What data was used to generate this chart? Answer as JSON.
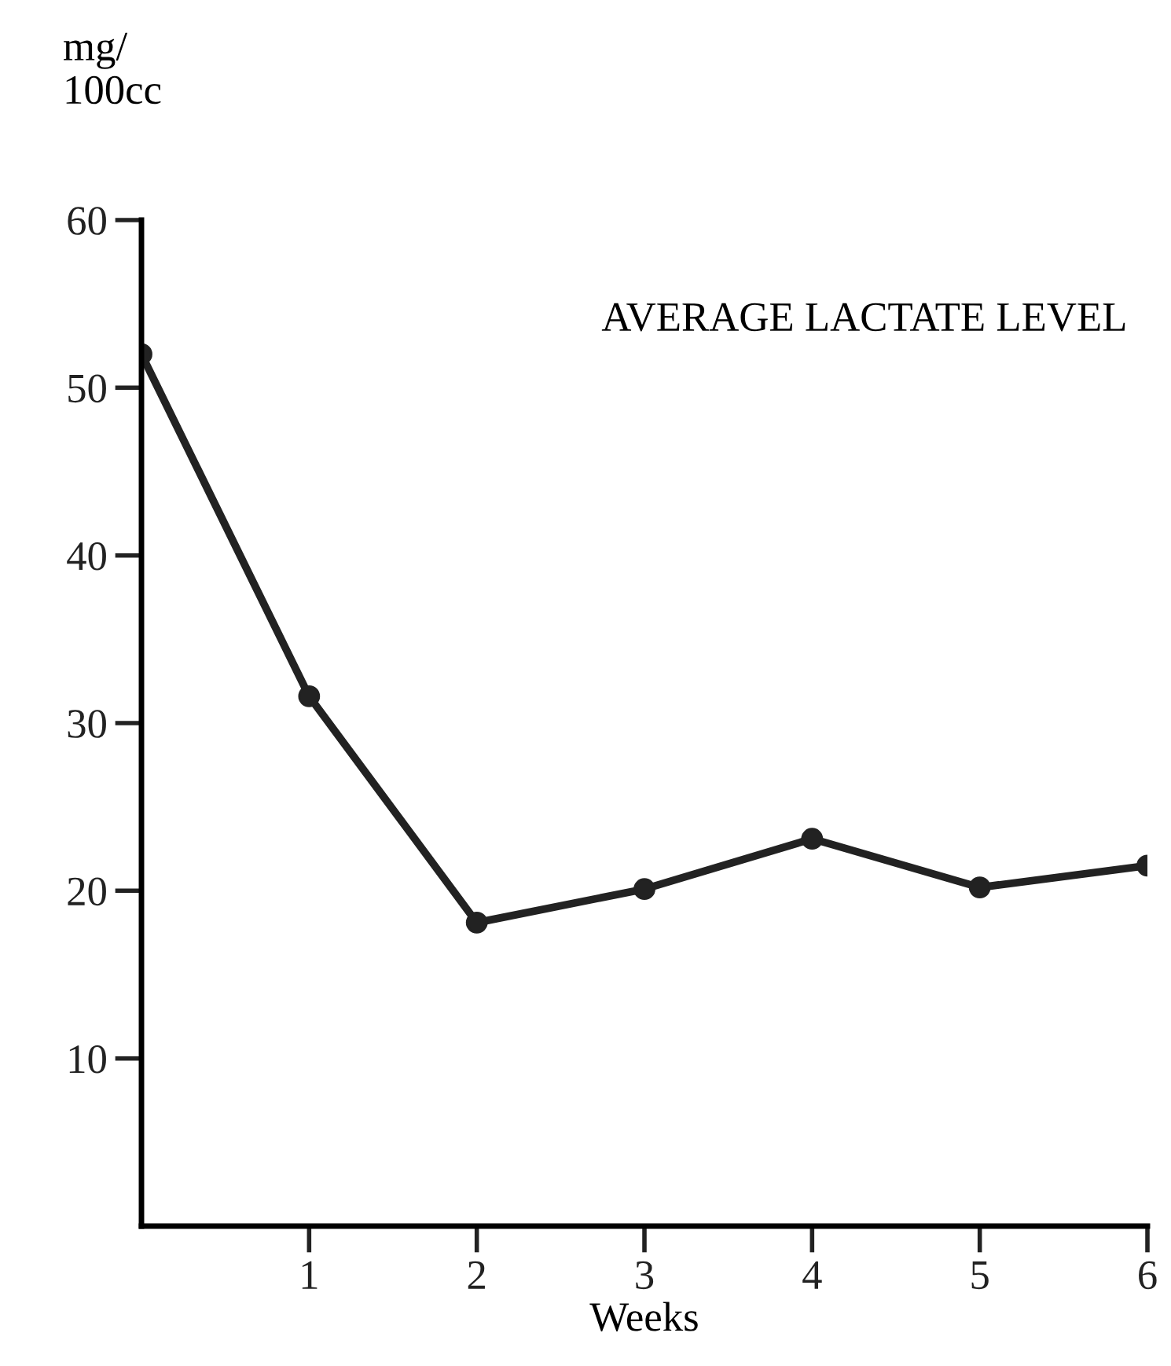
{
  "chart_data": {
    "type": "line",
    "title": "AVERAGE LACTATE LEVEL",
    "xlabel": "Weeks",
    "ylabel": "mg/\n100cc",
    "x": [
      0,
      1,
      2,
      3,
      4,
      5,
      6
    ],
    "series": [
      {
        "color": "#222222",
        "values": [
          52.0,
          31.6,
          18.1,
          20.1,
          23.1,
          20.2,
          21.5
        ]
      }
    ],
    "xlim": [
      0,
      6
    ],
    "xticks": [
      1,
      2,
      3,
      4,
      5,
      6
    ],
    "ylim": [
      0,
      60
    ],
    "yticks": [
      10,
      20,
      30,
      40,
      50,
      60
    ],
    "marker": "circle",
    "line_style": "solid",
    "grid": false,
    "legend": false
  }
}
